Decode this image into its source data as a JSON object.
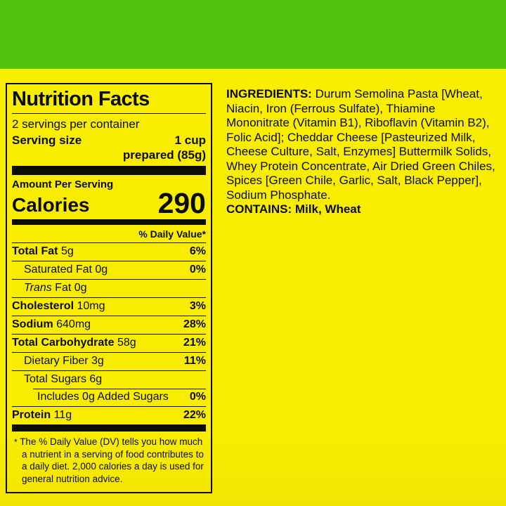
{
  "colors": {
    "top_band_green": "#52c40c",
    "background_yellow": "#f8ec00",
    "text_black": "#0d0c00"
  },
  "label": {
    "title": "Nutrition Facts",
    "servings_per_container": "2 servings per container",
    "serving_size_label": "Serving size",
    "serving_size_line1": "1 cup",
    "serving_size_line2": "prepared (85g)",
    "amount_per_serving": "Amount Per Serving",
    "calories_label": "Calories",
    "calories_value": "290",
    "daily_value_header": "% Daily Value*",
    "rows": [
      {
        "name": "Total Fat",
        "amount": "5g",
        "dv": "6%"
      },
      {
        "name": "Saturated Fat",
        "amount": "0g",
        "dv": "0%"
      },
      {
        "name_italic": "Trans",
        "name_rest": "Fat",
        "amount": "0g",
        "dv": ""
      },
      {
        "name": "Cholesterol",
        "amount": "10mg",
        "dv": "3%"
      },
      {
        "name": "Sodium",
        "amount": "640mg",
        "dv": "28%"
      },
      {
        "name": "Total Carbohydrate",
        "amount": "58g",
        "dv": "21%"
      },
      {
        "name": "Dietary Fiber",
        "amount": "3g",
        "dv": "11%"
      },
      {
        "name": "Total Sugars",
        "amount": "6g",
        "dv": ""
      },
      {
        "name": "Includes 0g Added Sugars",
        "amount": "",
        "dv": "0%"
      },
      {
        "name": "Protein",
        "amount": "11g",
        "dv": "22%"
      }
    ],
    "footnote_marker": "*",
    "footnote": "The % Daily Value (DV) tells you how much a nutrient in a serving of food contributes to a daily diet. 2,000 calories a day is used for general nutrition advice."
  },
  "ingredients": {
    "heading": "INGREDIENTS:",
    "text": " Durum Semolina Pasta [Wheat, Niacin, Iron (Ferrous Sulfate), Thiamine Mononitrate (Vitamin B1), Riboflavin (Vitamin B2), Folic Acid]; Cheddar Cheese [Pasteurized Milk, Cheese Culture, Salt, Enzymes] Buttermilk Solids, Whey Protein Concentrate, Air Dried Green Chiles, Spices [Green Chile, Garlic, Salt, Black Pepper], Sodium Phosphate.",
    "contains": "CONTAINS: Milk, Wheat"
  }
}
